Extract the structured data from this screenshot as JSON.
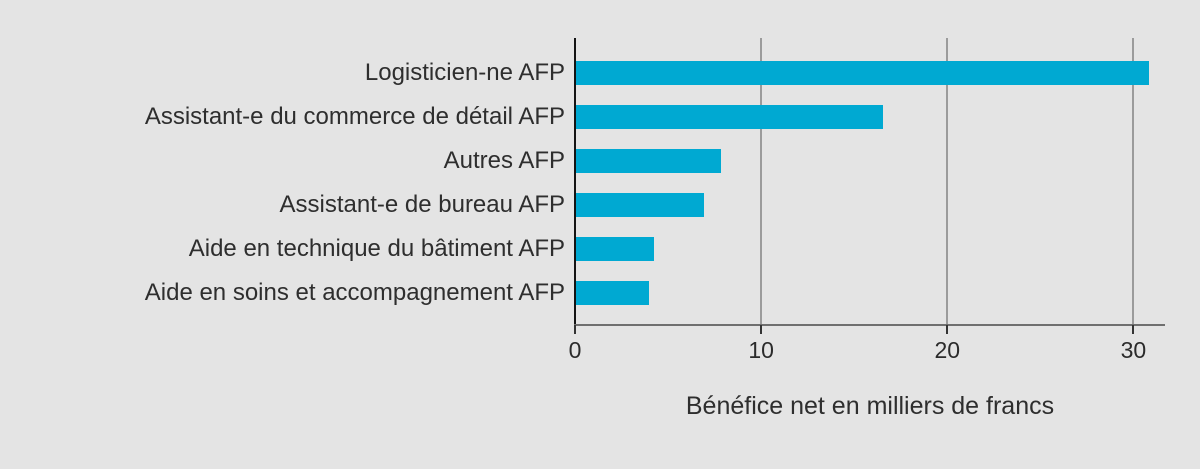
{
  "page": {
    "background_color": "#e4e4e4"
  },
  "chart_data": {
    "type": "bar",
    "orientation": "horizontal",
    "title": "",
    "xlabel": "Bénéfice net en milliers de francs",
    "ylabel": "",
    "categories": [
      "Logisticien-ne AFP",
      "Assistant-e du commerce de détail AFP",
      "Autres AFP",
      "Assistant-e de bureau AFP",
      "Aide en technique du bâtiment AFP",
      "Aide en soins et accompagnement AFP"
    ],
    "values": [
      30.8,
      16.5,
      7.8,
      6.9,
      4.2,
      3.9
    ],
    "xticks": [
      0,
      10,
      20,
      30
    ],
    "xlim": [
      0,
      31.7
    ],
    "bar_color": "#00a9d2",
    "gridline_color": "#9b9b9b",
    "grid": "vertical-only",
    "legend": "none"
  }
}
